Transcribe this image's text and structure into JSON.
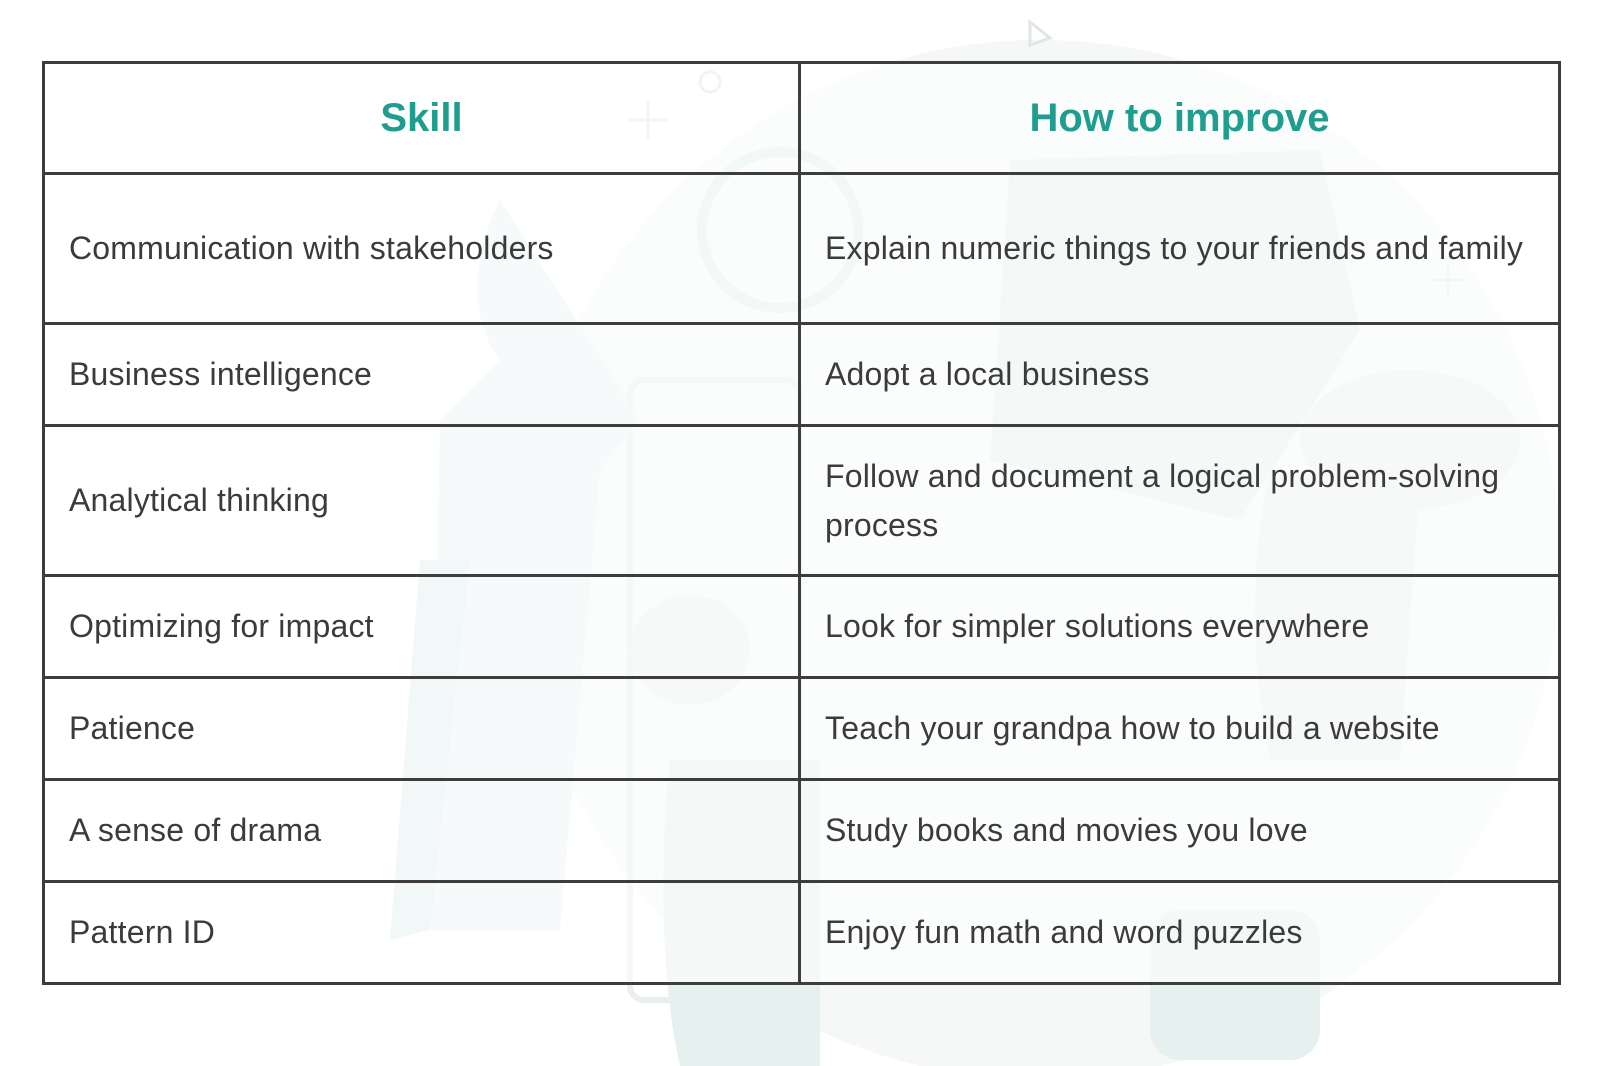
{
  "table": {
    "headers": {
      "skill": "Skill",
      "how": "How to improve"
    },
    "rows": [
      {
        "skill": "Communication with stakeholders",
        "how": "Explain numeric things to your friends and family"
      },
      {
        "skill": "Business intelligence",
        "how": "Adopt a local business"
      },
      {
        "skill": "Analytical thinking",
        "how": "Follow and document a logical problem-solving process"
      },
      {
        "skill": "Optimizing for impact",
        "how": "Look for simpler solutions everywhere"
      },
      {
        "skill": "Patience",
        "how": "Teach your grandpa how to build a website"
      },
      {
        "skill": "A sense of drama",
        "how": "Study books and movies you love"
      },
      {
        "skill": "Pattern ID",
        "how": "Enjoy fun math and word puzzles"
      }
    ]
  },
  "colors": {
    "header_text": "#1f9e8f",
    "body_text": "#3b3b3b",
    "border": "#3d3d3d",
    "background_art": "#e4f1ef"
  }
}
